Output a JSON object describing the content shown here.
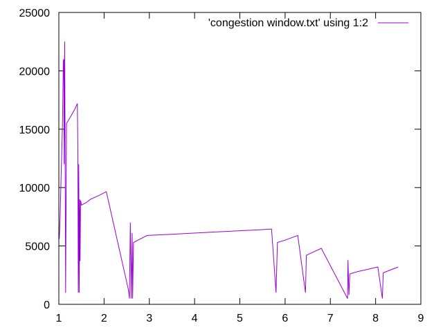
{
  "chart_data": {
    "type": "line",
    "title": "",
    "xlabel": "",
    "ylabel": "",
    "xlim": [
      1,
      9
    ],
    "ylim": [
      0,
      25000
    ],
    "x_ticks": [
      1,
      2,
      3,
      4,
      5,
      6,
      7,
      8,
      9
    ],
    "y_ticks": [
      0,
      5000,
      10000,
      15000,
      20000,
      25000
    ],
    "grid": false,
    "legend_position": "top-right",
    "series": [
      {
        "name": "'congestion window.txt' using 1:2",
        "color": "#9400d3",
        "points": [
          [
            1.01,
            5600
          ],
          [
            1.03,
            7800
          ],
          [
            1.05,
            11000
          ],
          [
            1.08,
            15200
          ],
          [
            1.1,
            20900
          ],
          [
            1.11,
            21000
          ],
          [
            1.12,
            12000
          ],
          [
            1.13,
            22500
          ],
          [
            1.15,
            1000
          ],
          [
            1.17,
            15500
          ],
          [
            1.25,
            16000
          ],
          [
            1.35,
            16700
          ],
          [
            1.41,
            17200
          ],
          [
            1.42,
            13000
          ],
          [
            1.43,
            1000
          ],
          [
            1.44,
            12000
          ],
          [
            1.45,
            1000
          ],
          [
            1.46,
            9000
          ],
          [
            1.47,
            3700
          ],
          [
            1.48,
            8900
          ],
          [
            1.5,
            8500
          ],
          [
            1.6,
            8700
          ],
          [
            1.7,
            9000
          ],
          [
            1.9,
            9350
          ],
          [
            2.05,
            9650
          ],
          [
            2.54,
            1200
          ],
          [
            2.56,
            500
          ],
          [
            2.58,
            7000
          ],
          [
            2.6,
            500
          ],
          [
            2.62,
            6100
          ],
          [
            2.63,
            500
          ],
          [
            2.65,
            5300
          ],
          [
            2.95,
            5900
          ],
          [
            3.5,
            6000
          ],
          [
            4.5,
            6200
          ],
          [
            5.5,
            6400
          ],
          [
            5.7,
            6450
          ],
          [
            5.8,
            1000
          ],
          [
            5.83,
            5300
          ],
          [
            6.0,
            5500
          ],
          [
            6.28,
            5900
          ],
          [
            6.45,
            1000
          ],
          [
            6.47,
            4200
          ],
          [
            6.8,
            4800
          ],
          [
            7.38,
            500
          ],
          [
            7.39,
            3800
          ],
          [
            7.41,
            800
          ],
          [
            7.43,
            2600
          ],
          [
            7.6,
            2800
          ],
          [
            8.05,
            3200
          ],
          [
            8.15,
            500
          ],
          [
            8.17,
            2700
          ],
          [
            8.5,
            3200
          ]
        ]
      }
    ]
  }
}
